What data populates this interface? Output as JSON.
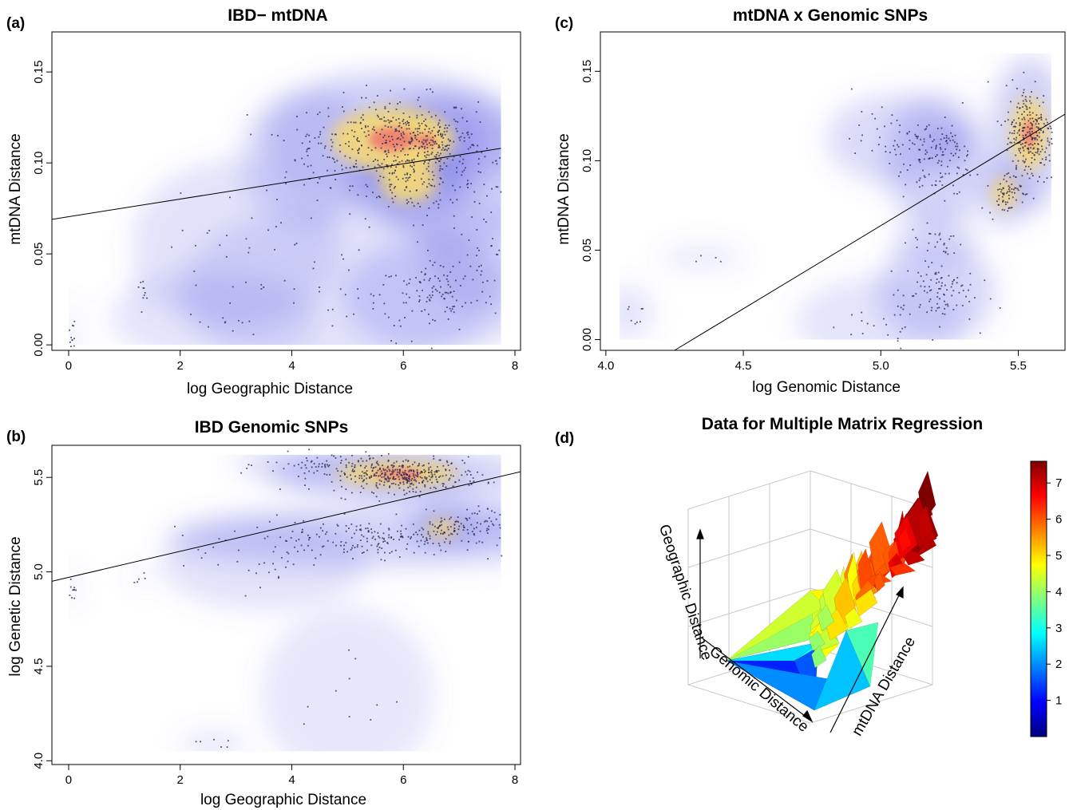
{
  "chart_data": [
    {
      "panel": "(a)",
      "type": "scatter",
      "title": "IBD− mtDNA",
      "xlabel": "log Geographic Distance",
      "ylabel": "mtDNA Distance",
      "xlim": [
        -0.3,
        8.1
      ],
      "ylim": [
        -0.003,
        0.172
      ],
      "xticks": [
        "0",
        "2",
        "4",
        "6",
        "8"
      ],
      "yticks": [
        "0.00",
        "0.05",
        "0.10",
        "0.15"
      ],
      "density_overlay": true,
      "regression_line": {
        "x": [
          -0.3,
          7.75
        ],
        "y": [
          0.069,
          0.108
        ]
      },
      "clusters": [
        {
          "cx": 5.8,
          "cy": 0.113,
          "sx": 0.75,
          "sy": 0.012,
          "n": 320,
          "weight": 1.0
        },
        {
          "cx": 6.4,
          "cy": 0.112,
          "sx": 0.35,
          "sy": 0.007,
          "n": 90,
          "weight": 0.9
        },
        {
          "cx": 6.1,
          "cy": 0.09,
          "sx": 0.35,
          "sy": 0.008,
          "n": 80,
          "weight": 0.7
        },
        {
          "cx": 7.0,
          "cy": 0.095,
          "sx": 0.5,
          "sy": 0.014,
          "n": 90,
          "weight": 0.45
        },
        {
          "cx": 6.6,
          "cy": 0.027,
          "sx": 0.55,
          "sy": 0.01,
          "n": 100,
          "weight": 0.4
        },
        {
          "cx": 7.3,
          "cy": 0.05,
          "sx": 0.3,
          "sy": 0.01,
          "n": 30,
          "weight": 0.2
        },
        {
          "cx": 4.3,
          "cy": 0.103,
          "sx": 0.4,
          "sy": 0.012,
          "n": 40,
          "weight": 0.25
        },
        {
          "cx": 4.8,
          "cy": 0.03,
          "sx": 0.9,
          "sy": 0.015,
          "n": 40,
          "weight": 0.15
        },
        {
          "cx": 3.0,
          "cy": 0.055,
          "sx": 0.6,
          "sy": 0.015,
          "n": 25,
          "weight": 0.15
        },
        {
          "cx": 1.3,
          "cy": 0.031,
          "sx": 0.03,
          "sy": 0.003,
          "n": 8,
          "weight": 0.25
        },
        {
          "cx": 0.05,
          "cy": 0.005,
          "sx": 0.03,
          "sy": 0.006,
          "n": 12,
          "weight": 0.25
        },
        {
          "cx": 2.6,
          "cy": 0.015,
          "sx": 0.6,
          "sy": 0.008,
          "n": 15,
          "weight": 0.1
        }
      ]
    },
    {
      "panel": "(b)",
      "type": "scatter",
      "title": "IBD Genomic SNPs",
      "xlabel": "log Geographic Distance",
      "ylabel": "log Genetic Distance",
      "xlim": [
        -0.3,
        8.1
      ],
      "ylim": [
        3.98,
        5.67
      ],
      "xticks": [
        "0",
        "2",
        "4",
        "6",
        "8"
      ],
      "yticks": [
        "4.0",
        "4.5",
        "5.0",
        "5.5"
      ],
      "density_overlay": true,
      "regression_line": {
        "x": [
          -0.3,
          8.1
        ],
        "y": [
          4.95,
          5.53
        ]
      },
      "clusters": [
        {
          "cx": 5.9,
          "cy": 5.52,
          "sx": 0.75,
          "sy": 0.045,
          "n": 320,
          "weight": 1.0
        },
        {
          "cx": 6.1,
          "cy": 5.5,
          "sx": 0.3,
          "sy": 0.03,
          "n": 80,
          "weight": 0.9
        },
        {
          "cx": 4.5,
          "cy": 5.57,
          "sx": 0.5,
          "sy": 0.03,
          "n": 40,
          "weight": 0.35
        },
        {
          "cx": 5.5,
          "cy": 5.18,
          "sx": 1.2,
          "sy": 0.05,
          "n": 220,
          "weight": 0.5
        },
        {
          "cx": 6.7,
          "cy": 5.23,
          "sx": 0.2,
          "sy": 0.03,
          "n": 40,
          "weight": 0.8
        },
        {
          "cx": 7.3,
          "cy": 5.27,
          "sx": 0.35,
          "sy": 0.04,
          "n": 50,
          "weight": 0.4
        },
        {
          "cx": 3.5,
          "cy": 5.05,
          "sx": 0.6,
          "sy": 0.08,
          "n": 25,
          "weight": 0.15
        },
        {
          "cx": 0.05,
          "cy": 4.92,
          "sx": 0.03,
          "sy": 0.03,
          "n": 10,
          "weight": 0.25
        },
        {
          "cx": 1.3,
          "cy": 4.97,
          "sx": 0.04,
          "sy": 0.015,
          "n": 5,
          "weight": 0.2
        },
        {
          "cx": 2.6,
          "cy": 4.09,
          "sx": 0.2,
          "sy": 0.02,
          "n": 6,
          "weight": 0.1
        },
        {
          "cx": 5.0,
          "cy": 4.35,
          "sx": 0.5,
          "sy": 0.15,
          "n": 10,
          "weight": 0.05
        }
      ]
    },
    {
      "panel": "(c)",
      "type": "scatter",
      "title": "mtDNA x Genomic SNPs",
      "xlabel": "log Genomic Distance",
      "ylabel": "mtDNA Distance",
      "xlim": [
        3.98,
        5.67
      ],
      "ylim": [
        -0.006,
        0.172
      ],
      "xticks": [
        "4.0",
        "4.5",
        "5.0",
        "5.5"
      ],
      "yticks": [
        "0.00",
        "0.05",
        "0.10",
        "0.15"
      ],
      "density_overlay": true,
      "regression_line": {
        "x": [
          4.25,
          5.67
        ],
        "y": [
          -0.006,
          0.126
        ]
      },
      "clusters": [
        {
          "cx": 5.54,
          "cy": 0.115,
          "sx": 0.045,
          "sy": 0.014,
          "n": 260,
          "weight": 1.0
        },
        {
          "cx": 5.45,
          "cy": 0.082,
          "sx": 0.03,
          "sy": 0.006,
          "n": 60,
          "weight": 0.75
        },
        {
          "cx": 5.25,
          "cy": 0.109,
          "sx": 0.03,
          "sy": 0.003,
          "n": 25,
          "weight": 0.5
        },
        {
          "cx": 5.2,
          "cy": 0.1,
          "sx": 0.06,
          "sy": 0.012,
          "n": 90,
          "weight": 0.45
        },
        {
          "cx": 5.05,
          "cy": 0.112,
          "sx": 0.08,
          "sy": 0.008,
          "n": 50,
          "weight": 0.3
        },
        {
          "cx": 5.2,
          "cy": 0.027,
          "sx": 0.07,
          "sy": 0.009,
          "n": 90,
          "weight": 0.4
        },
        {
          "cx": 5.2,
          "cy": 0.055,
          "sx": 0.05,
          "sy": 0.005,
          "n": 30,
          "weight": 0.2
        },
        {
          "cx": 5.0,
          "cy": 0.01,
          "sx": 0.1,
          "sy": 0.008,
          "n": 25,
          "weight": 0.12
        },
        {
          "cx": 4.08,
          "cy": 0.015,
          "sx": 0.03,
          "sy": 0.005,
          "n": 8,
          "weight": 0.12
        },
        {
          "cx": 4.35,
          "cy": 0.046,
          "sx": 0.05,
          "sy": 0.002,
          "n": 4,
          "weight": 0.08
        }
      ]
    },
    {
      "panel": "(d)",
      "type": "surface3d",
      "title": "Data for Multiple Matrix Regression",
      "axis_labels": [
        "Geographic Distance",
        "Genomic Distance",
        "mtDNA Distance"
      ],
      "colorbar": {
        "ticks": [
          "1",
          "2",
          "3",
          "4",
          "5",
          "6",
          "7"
        ],
        "range": [
          0,
          7.6
        ]
      }
    }
  ]
}
